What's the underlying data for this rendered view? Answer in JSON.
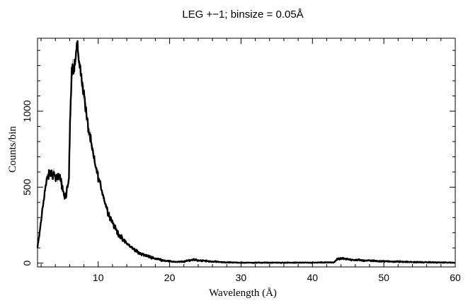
{
  "chart_data": {
    "type": "line",
    "title": "LEG +−1; binsize = 0.05Å",
    "xlabel": "Wavelength (Å)",
    "ylabel": "Counts/bin",
    "xlim": [
      1.5,
      60
    ],
    "ylim": [
      -25,
      1480
    ],
    "x_ticks": [
      10,
      20,
      30,
      40,
      50,
      60
    ],
    "x_tick_labels": [
      "10",
      "20",
      "30",
      "40",
      "50",
      "60"
    ],
    "y_ticks": [
      0,
      500,
      1000
    ],
    "y_tick_labels": [
      "0",
      "500",
      "1000"
    ],
    "grid": false,
    "legend": "none",
    "line_color": "#000000",
    "errorbar_color": "#9a9a9a",
    "series": [
      {
        "x": [
          1.5,
          1.8,
          2.0,
          2.3,
          2.6,
          2.9,
          3.2,
          3.5,
          3.8,
          4.1,
          4.4,
          4.7,
          5.0,
          5.3,
          5.6,
          5.9,
          6.0,
          6.1,
          6.3,
          6.5,
          6.8,
          7.0,
          7.1,
          7.3,
          7.6,
          8.0,
          8.5,
          9.0,
          9.5,
          10.0,
          10.5,
          11.0,
          11.5,
          12.0,
          12.5,
          13.0,
          13.5,
          14.0,
          15.0,
          16.0,
          17.0,
          18.0,
          19.0,
          20.0,
          21.0,
          22.0,
          23.0,
          23.5,
          24.0,
          25.0,
          26.0,
          27.0,
          28.0,
          30.0,
          35.0,
          40.0,
          43.0,
          43.5,
          44.0,
          45.0,
          47.0,
          50.0,
          55.0,
          60.0
        ],
        "y": [
          100,
          200,
          280,
          400,
          500,
          560,
          590,
          590,
          580,
          560,
          570,
          550,
          500,
          430,
          470,
          560,
          800,
          1020,
          1280,
          1280,
          1330,
          1440,
          1420,
          1340,
          1240,
          1110,
          920,
          790,
          660,
          570,
          480,
          390,
          320,
          270,
          220,
          180,
          150,
          130,
          90,
          60,
          45,
          30,
          20,
          12,
          8,
          10,
          20,
          25,
          18,
          15,
          10,
          8,
          5,
          3,
          3,
          3,
          5,
          25,
          30,
          25,
          18,
          12,
          6,
          3
        ]
      }
    ]
  }
}
